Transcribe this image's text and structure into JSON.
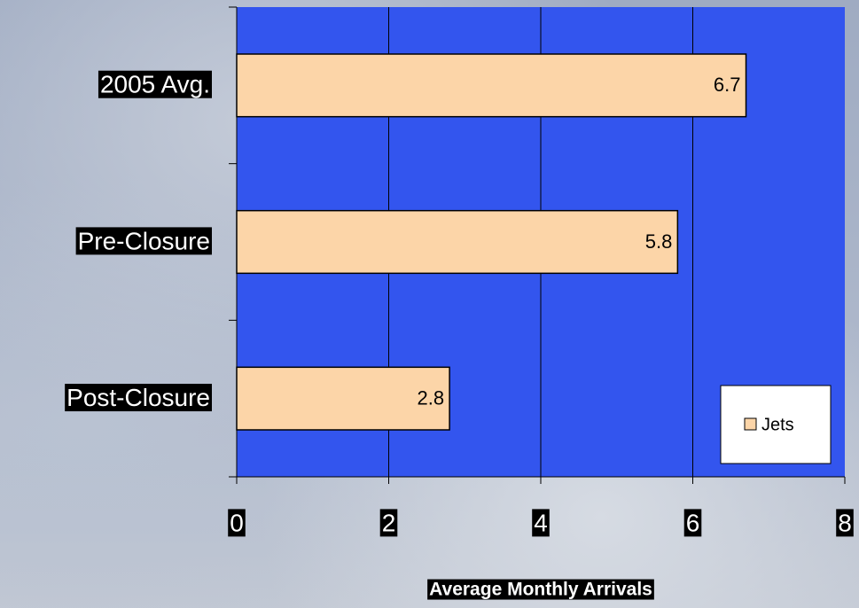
{
  "chart_data": {
    "type": "bar",
    "orientation": "horizontal",
    "categories": [
      "2005 Avg.",
      "Pre-Closure",
      "Post-Closure"
    ],
    "series": [
      {
        "name": "Jets",
        "color": "#fcd5a8",
        "values": [
          6.7,
          5.8,
          2.8
        ]
      }
    ],
    "x_label": "Average Monthly Arrivals",
    "xlim": [
      0,
      8
    ],
    "xticks": [
      0,
      2,
      4,
      6,
      8
    ],
    "grid": true,
    "legend": "lower right",
    "plot_color": "#3355ee"
  }
}
